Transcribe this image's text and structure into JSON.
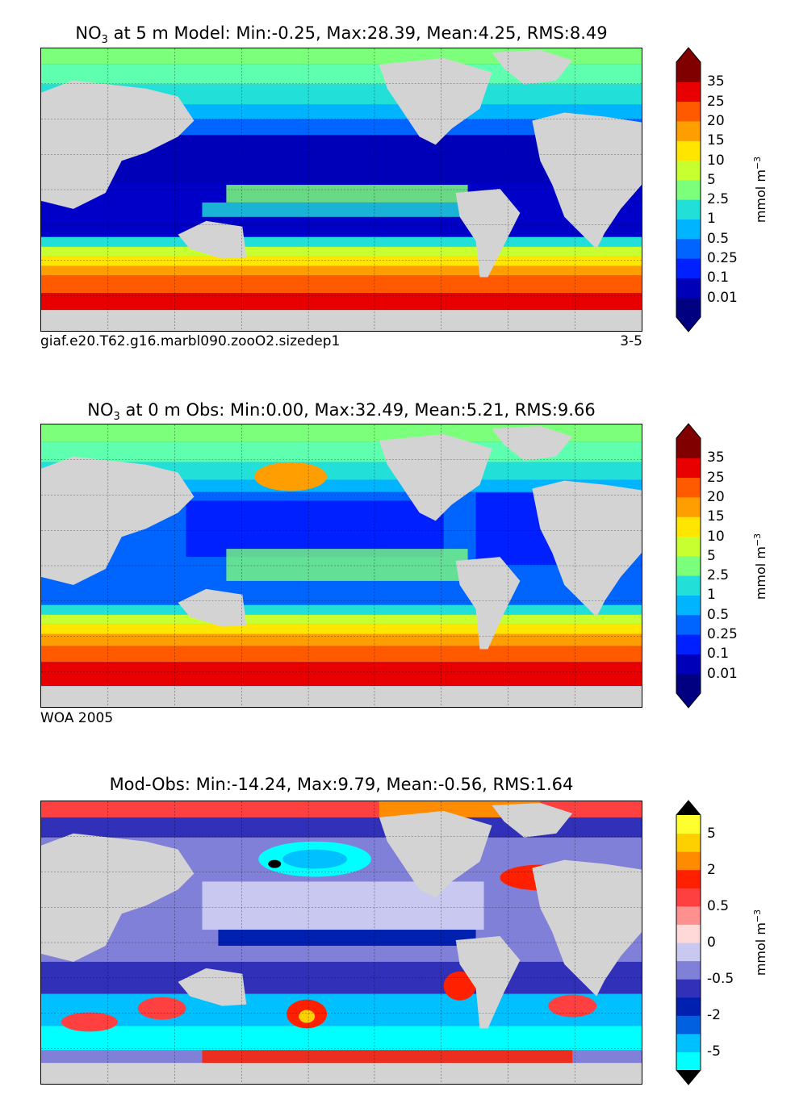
{
  "panels": [
    {
      "title_prefix": "NO",
      "title_sub": "3",
      "title_rest": " at 5 m Model: Min:-0.25, Max:28.39, Mean:4.25, RMS:8.49",
      "caption_left": "giaf.e20.T62.g16.marbl090.zooO2.sizedep1",
      "caption_right": "3-5",
      "colorbar": {
        "ticks": [
          "35",
          "25",
          "20",
          "15",
          "10",
          "5",
          "2.5",
          "1",
          "0.5",
          "0.25",
          "0.1",
          "0.01"
        ],
        "colors": [
          "#000080",
          "#0000b8",
          "#0020ff",
          "#0064ff",
          "#00b4ff",
          "#22e0d8",
          "#7cff7a",
          "#c8ff30",
          "#ffe600",
          "#ff9e00",
          "#ff5a00",
          "#e80000",
          "#800000"
        ],
        "min_arrow": "#000080",
        "max_arrow": "#800000",
        "unit": "mmol m",
        "unit_sup": "−3"
      }
    },
    {
      "title_prefix": "NO",
      "title_sub": "3",
      "title_rest": " at 0 m Obs: Min:0.00, Max:32.49, Mean:5.21, RMS:9.66",
      "caption_left": "WOA 2005",
      "caption_right": "",
      "colorbar": {
        "ticks": [
          "35",
          "25",
          "20",
          "15",
          "10",
          "5",
          "2.5",
          "1",
          "0.5",
          "0.25",
          "0.1",
          "0.01"
        ],
        "colors": [
          "#000080",
          "#0000b8",
          "#0020ff",
          "#0064ff",
          "#00b4ff",
          "#22e0d8",
          "#7cff7a",
          "#c8ff30",
          "#ffe600",
          "#ff9e00",
          "#ff5a00",
          "#e80000",
          "#800000"
        ],
        "min_arrow": "#000080",
        "max_arrow": "#800000",
        "unit": "mmol m",
        "unit_sup": "−3"
      }
    },
    {
      "title_prefix": "",
      "title_sub": "",
      "title_rest": "Mod-Obs: Min:-14.24, Max:9.79, Mean:-0.56, RMS:1.64",
      "caption_left": "",
      "caption_right": "",
      "colorbar": {
        "ticks": [
          "5",
          "2",
          "0.5",
          "0",
          "-0.5",
          "-2",
          "-5"
        ],
        "colors": [
          "#00ffff",
          "#00c0ff",
          "#0060e0",
          "#0020b0",
          "#3030b8",
          "#8080d8",
          "#c8c8f0",
          "#ffd8d8",
          "#ff9090",
          "#ff4040",
          "#ff2000",
          "#ff8c00",
          "#ffd000",
          "#ffff30"
        ],
        "min_arrow": "#000000",
        "max_arrow": "#000000",
        "unit": "mmol m",
        "unit_sup": "−3"
      }
    }
  ]
}
